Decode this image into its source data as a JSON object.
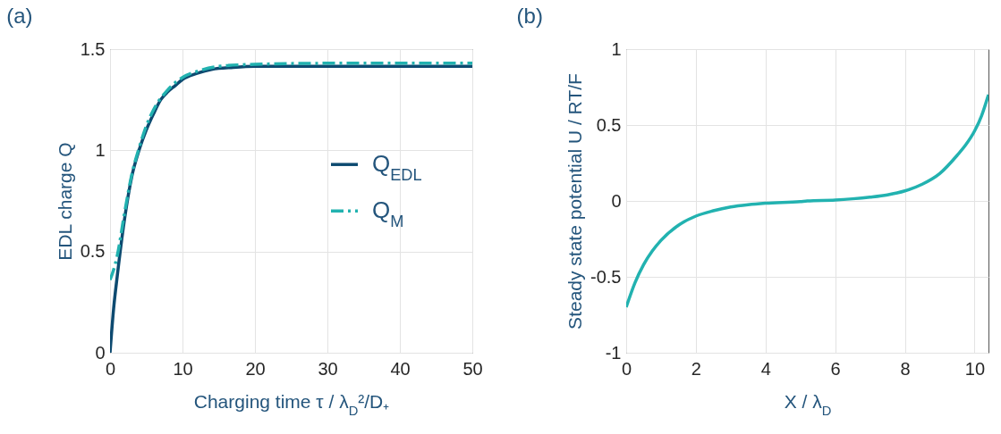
{
  "chart_data": [
    {
      "type": "line",
      "title": "(a)",
      "xlabel": "Charging time τ / λ$_{D}$²/D₊",
      "ylabel": "EDL charge Q",
      "xlim": [
        0,
        50
      ],
      "xticks": [
        0,
        10,
        20,
        30,
        40,
        50
      ],
      "ylim": [
        0,
        1.5
      ],
      "yticks": [
        0,
        0.5,
        1,
        1.5
      ],
      "grid": true,
      "legend": "right",
      "series": [
        {
          "name": "Q$_{EDL}$",
          "color": "#0d4a70",
          "line_style": "solid",
          "x": [
            0,
            0.5,
            1,
            2,
            3,
            4,
            5,
            6,
            7,
            8,
            9,
            10,
            12,
            14,
            17,
            20,
            30,
            40,
            50
          ],
          "values": [
            0,
            0.22,
            0.38,
            0.66,
            0.87,
            1.0,
            1.1,
            1.18,
            1.25,
            1.29,
            1.32,
            1.35,
            1.38,
            1.4,
            1.41,
            1.415,
            1.415,
            1.415,
            1.415
          ]
        },
        {
          "name": "Q$_{M}$",
          "color": "#22b2b0",
          "line_style": "dashed",
          "x": [
            0,
            0.5,
            1,
            2,
            3,
            4,
            5,
            6,
            8,
            10,
            12,
            15,
            20,
            30,
            40,
            50
          ],
          "values": [
            0.36,
            0.41,
            0.48,
            0.69,
            0.88,
            1.01,
            1.12,
            1.2,
            1.3,
            1.36,
            1.39,
            1.415,
            1.425,
            1.43,
            1.43,
            1.43
          ]
        }
      ]
    },
    {
      "type": "line",
      "title": "(b)",
      "xlabel": "X / λ$_{D}$",
      "ylabel": "Steady state potential U / RT/F",
      "xlim": [
        0,
        10.4
      ],
      "xticks": [
        0,
        2,
        4,
        6,
        8,
        10
      ],
      "ylim": [
        -1,
        1
      ],
      "yticks": [
        -1,
        -0.5,
        0,
        0.5,
        1
      ],
      "grid": true,
      "series": [
        {
          "color": "#22b2b0",
          "line_style": "solid",
          "x": [
            0,
            0.25,
            0.5,
            0.75,
            1,
            1.5,
            2,
            2.5,
            3,
            3.5,
            4,
            5,
            5.2,
            6,
            6.5,
            7,
            7.5,
            8,
            8.5,
            9,
            9.5,
            9.75,
            10,
            10.2,
            10.4
          ],
          "values": [
            -0.7,
            -0.54,
            -0.42,
            -0.33,
            -0.26,
            -0.16,
            -0.1,
            -0.065,
            -0.04,
            -0.025,
            -0.015,
            -0.004,
            0,
            0.006,
            0.014,
            0.025,
            0.04,
            0.066,
            0.11,
            0.18,
            0.3,
            0.37,
            0.46,
            0.56,
            0.7
          ]
        }
      ]
    }
  ]
}
